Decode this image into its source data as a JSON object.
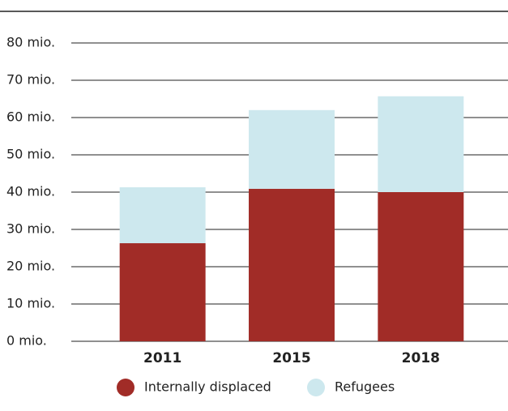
{
  "chart_data": {
    "type": "stacked_bar",
    "categories": [
      "2011",
      "2015",
      "2018"
    ],
    "series": [
      {
        "name": "Internally displaced",
        "color": "#a12c27",
        "values": [
          26.3,
          40.9,
          40.0
        ]
      },
      {
        "name": "Refugees",
        "color": "#cde8ee",
        "values": [
          15.0,
          21.1,
          25.7
        ]
      }
    ],
    "ylim": [
      0,
      80
    ],
    "yticks": [
      {
        "value": 0,
        "label": "0 mio."
      },
      {
        "value": 10,
        "label": "10 mio."
      },
      {
        "value": 20,
        "label": "20 mio."
      },
      {
        "value": 30,
        "label": "30 mio."
      },
      {
        "value": 40,
        "label": "40 mio."
      },
      {
        "value": 50,
        "label": "50 mio."
      },
      {
        "value": 60,
        "label": "60 mio."
      },
      {
        "value": 70,
        "label": "70 mio."
      },
      {
        "value": 80,
        "label": "80 mio."
      }
    ],
    "grid": true
  }
}
